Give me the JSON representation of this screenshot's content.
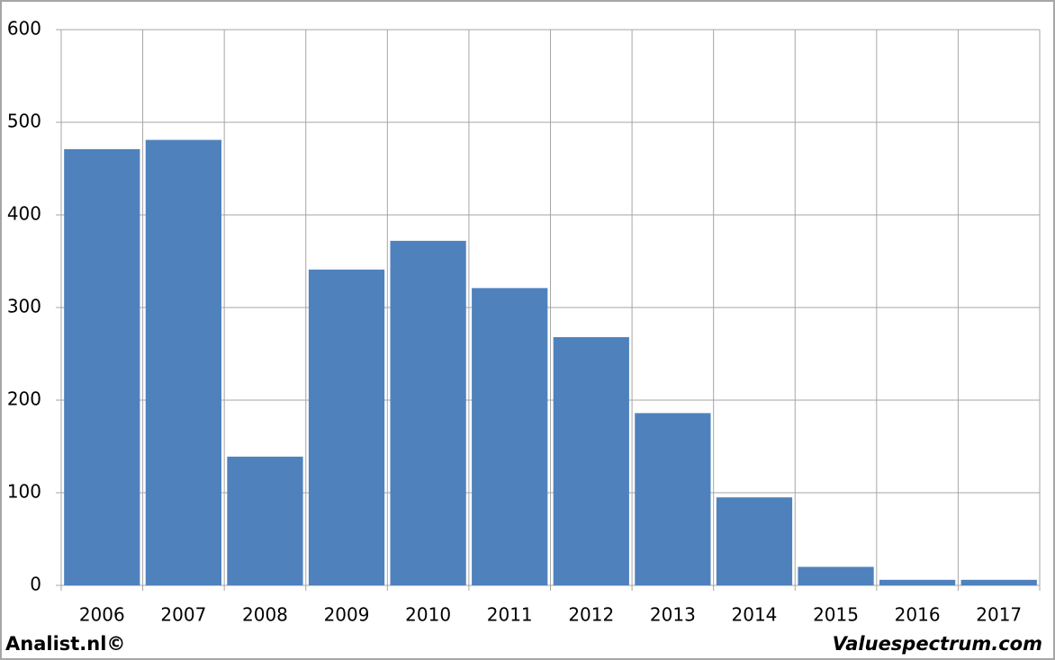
{
  "chart_data": {
    "type": "bar",
    "categories": [
      "2006",
      "2007",
      "2008",
      "2009",
      "2010",
      "2011",
      "2012",
      "2013",
      "2014",
      "2015",
      "2016",
      "2017"
    ],
    "values": [
      471,
      481,
      139,
      341,
      372,
      321,
      268,
      186,
      95,
      20,
      6,
      6
    ],
    "color": "#4f81bd",
    "ylim": [
      0,
      600
    ],
    "yticks": [
      0,
      100,
      200,
      300,
      400,
      500,
      600
    ],
    "grid": true,
    "footer_left": "Analist.nl©",
    "footer_right": "Valuespectrum.com"
  }
}
